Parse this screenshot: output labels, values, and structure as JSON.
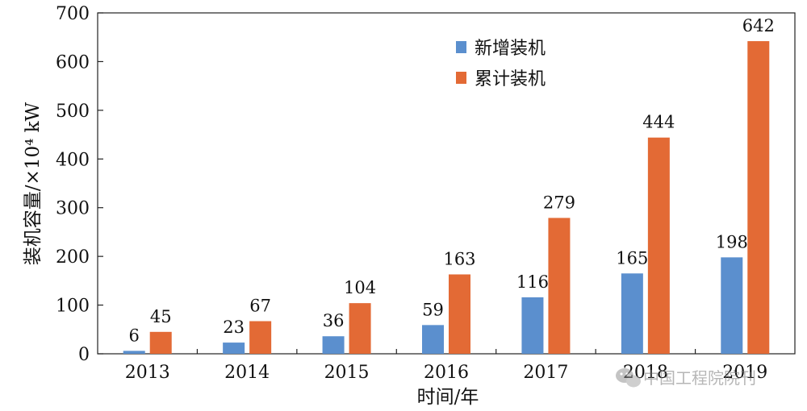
{
  "chart_data": {
    "type": "bar",
    "categories": [
      "2013",
      "2014",
      "2015",
      "2016",
      "2017",
      "2018",
      "2019"
    ],
    "series": [
      {
        "name": "新增装机",
        "values": [
          6,
          23,
          36,
          59,
          116,
          165,
          198
        ],
        "color": "#5b8fce"
      },
      {
        "name": "累计装机",
        "values": [
          45,
          67,
          104,
          163,
          279,
          444,
          642
        ],
        "color": "#e36a35"
      }
    ],
    "ylim": [
      0,
      700
    ],
    "yticks": [
      0,
      100,
      200,
      300,
      400,
      500,
      600,
      700
    ],
    "xlabel": "时间/年",
    "ylabel": "装机容量/×10⁴ kW",
    "legend_position": "top-center",
    "grid": false
  },
  "watermark": {
    "icon": "wechat-icon",
    "text": "中国工程院院刊"
  }
}
